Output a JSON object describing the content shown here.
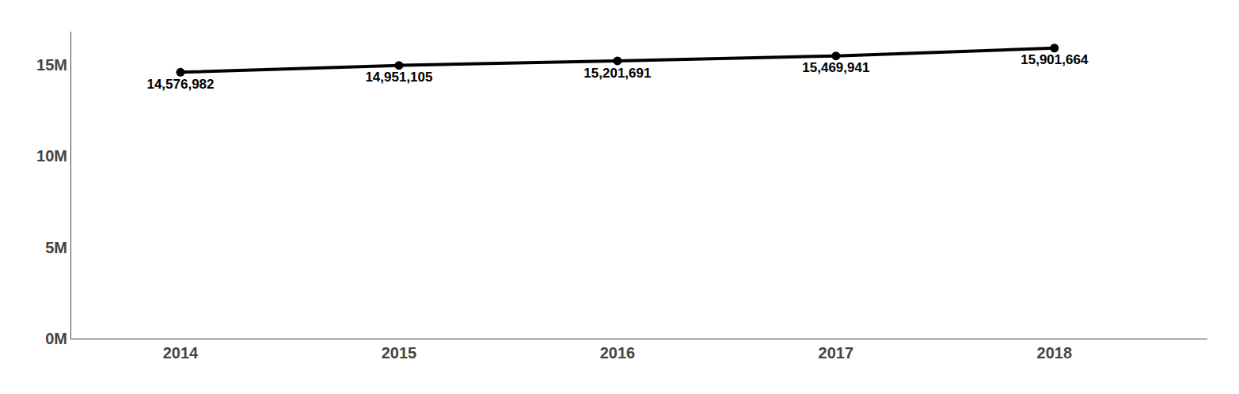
{
  "chart_data": {
    "type": "line",
    "x": [
      2014,
      2015,
      2016,
      2017,
      2018
    ],
    "values": [
      14576982,
      14951105,
      15201691,
      15469941,
      15901664
    ],
    "value_labels": [
      "14,576,982",
      "14,951,105",
      "15,201,691",
      "15,469,941",
      "15,901,664"
    ],
    "data_labels": true,
    "color": "#000000",
    "marker": "circle",
    "xlim": [
      2013.5,
      2018.7
    ],
    "xticks": [
      2014,
      2015,
      2016,
      2017,
      2018
    ],
    "ylim": [
      0,
      16800000
    ],
    "yticks": [
      {
        "value": 0,
        "label": "0M"
      },
      {
        "value": 5000000,
        "label": "5M"
      },
      {
        "value": 10000000,
        "label": "10M"
      },
      {
        "value": 15000000,
        "label": "15M"
      }
    ],
    "grid": false
  }
}
